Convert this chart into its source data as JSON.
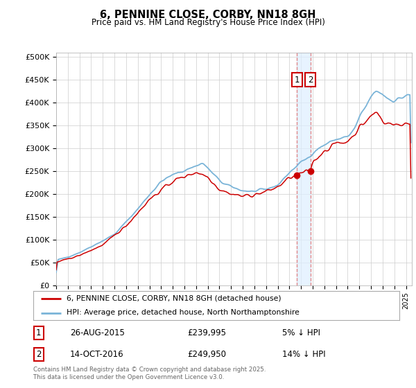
{
  "title": "6, PENNINE CLOSE, CORBY, NN18 8GH",
  "subtitle": "Price paid vs. HM Land Registry's House Price Index (HPI)",
  "ylabel_ticks": [
    "£0",
    "£50K",
    "£100K",
    "£150K",
    "£200K",
    "£250K",
    "£300K",
    "£350K",
    "£400K",
    "£450K",
    "£500K"
  ],
  "ytick_values": [
    0,
    50000,
    100000,
    150000,
    200000,
    250000,
    300000,
    350000,
    400000,
    450000,
    500000
  ],
  "ylim": [
    0,
    510000
  ],
  "xlim_start": 1995.0,
  "xlim_end": 2025.5,
  "hpi_color": "#7ab4d8",
  "price_color": "#cc0000",
  "dashed_color": "#e08080",
  "shade_color": "#ddeeff",
  "legend_label_price": "6, PENNINE CLOSE, CORBY, NN18 8GH (detached house)",
  "legend_label_hpi": "HPI: Average price, detached house, North Northamptonshire",
  "sale1_date": "26-AUG-2015",
  "sale1_price": "£239,995",
  "sale1_pct": "5% ↓ HPI",
  "sale1_x": 2015.65,
  "sale1_y": 239995,
  "sale2_date": "14-OCT-2016",
  "sale2_price": "£249,950",
  "sale2_pct": "14% ↓ HPI",
  "sale2_x": 2016.79,
  "sale2_y": 249950,
  "footer": "Contains HM Land Registry data © Crown copyright and database right 2025.\nThis data is licensed under the Open Government Licence v3.0.",
  "bg_color": "#ffffff",
  "plot_bg_color": "#ffffff",
  "grid_color": "#cccccc"
}
